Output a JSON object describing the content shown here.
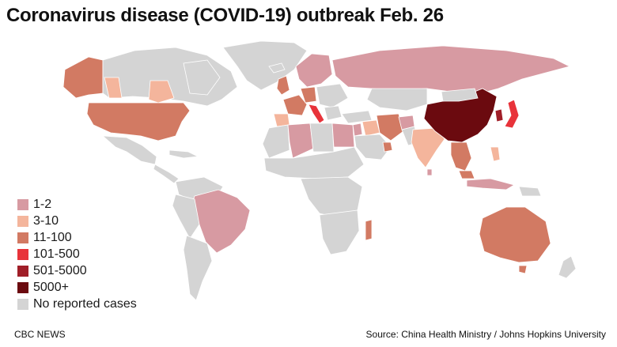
{
  "title": "Coronavirus disease (COVID-19) outbreak Feb. 26",
  "legend": [
    {
      "label": "1-2",
      "color": "#d79aa2"
    },
    {
      "label": "3-10",
      "color": "#f4b59c"
    },
    {
      "label": "11-100",
      "color": "#d27a63"
    },
    {
      "label": "101-500",
      "color": "#e8333a"
    },
    {
      "label": "501-5000",
      "color": "#a01e28"
    },
    {
      "label": "5000+",
      "color": "#6b0a0f"
    },
    {
      "label": "No reported cases",
      "color": "#d4d4d4"
    }
  ],
  "colors": {
    "ocean": "#ffffff",
    "no_cases": "#d4d4d4",
    "border": "#ffffff"
  },
  "footer": {
    "credit": "CBC NEWS",
    "source": "Source: China Health Ministry / Johns Hopkins University"
  }
}
